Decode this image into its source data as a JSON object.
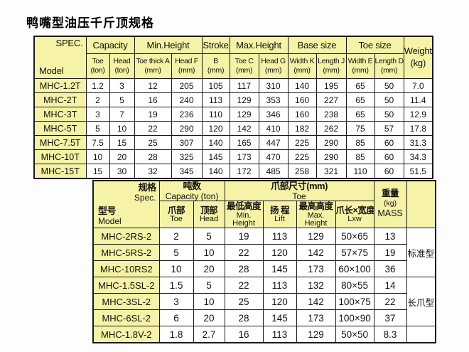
{
  "page": {
    "title": "鸭嘴型油压千斤顶规格"
  },
  "colors": {
    "header_yellow": "#f6f2a6",
    "border": "#1a1a1a",
    "cell_white": "#ffffff"
  },
  "table1": {
    "corner": {
      "top": "SPEC.",
      "bottom": "Model"
    },
    "groups": [
      {
        "label": "Capacity"
      },
      {
        "label": "Min.Height"
      },
      {
        "label": "Stroke"
      },
      {
        "label": "Max.Height"
      },
      {
        "label": "Base size"
      },
      {
        "label": "Toe size"
      }
    ],
    "weight": {
      "label": "Weight",
      "unit": "(kg)"
    },
    "subheaders": [
      {
        "name": "Toe",
        "unit": "(ton)"
      },
      {
        "name": "Head",
        "unit": "(ton)"
      },
      {
        "name": "Toe thick A",
        "unit": "(mm)"
      },
      {
        "name": "Head F",
        "unit": "(mm)"
      },
      {
        "name": "B",
        "unit": "(mm)"
      },
      {
        "name": "Toe C",
        "unit": "(mm)"
      },
      {
        "name": "Head G",
        "unit": "(mm)"
      },
      {
        "name": "Width K",
        "unit": "(mm)"
      },
      {
        "name": "Length J",
        "unit": "(mm)"
      },
      {
        "name": "Width E",
        "unit": "(mm)"
      },
      {
        "name": "Length D",
        "unit": "(mm)"
      }
    ],
    "rows": [
      {
        "model": "MHC-1.2T",
        "values": [
          "1.2",
          "3",
          "12",
          "205",
          "105",
          "117",
          "310",
          "140",
          "195",
          "65",
          "50",
          "7.0"
        ]
      },
      {
        "model": "MHC-2T",
        "values": [
          "2",
          "5",
          "16",
          "240",
          "113",
          "129",
          "353",
          "160",
          "227",
          "65",
          "50",
          "11.4"
        ]
      },
      {
        "model": "MHC-3T",
        "values": [
          "3",
          "7",
          "19",
          "236",
          "110",
          "129",
          "346",
          "160",
          "238",
          "65",
          "50",
          "12.9"
        ]
      },
      {
        "model": "MHC-5T",
        "values": [
          "5",
          "10",
          "22",
          "290",
          "120",
          "142",
          "410",
          "182",
          "262",
          "75",
          "57",
          "17.8"
        ]
      },
      {
        "model": "MHC-7.5T",
        "values": [
          "7.5",
          "15",
          "25",
          "307",
          "140",
          "165",
          "447",
          "225",
          "290",
          "85",
          "60",
          "31.3"
        ]
      },
      {
        "model": "MHC-10T",
        "values": [
          "10",
          "20",
          "28",
          "325",
          "145",
          "173",
          "470",
          "225",
          "290",
          "85",
          "60",
          "34.3"
        ]
      },
      {
        "model": "MHC-15T",
        "values": [
          "15",
          "30",
          "32",
          "345",
          "140",
          "172",
          "485",
          "258",
          "321",
          "110",
          "60",
          "51.5"
        ]
      }
    ]
  },
  "table2": {
    "corner": {
      "top_cn": "规格",
      "top_en": "Spec.",
      "bottom_cn": "型号",
      "bottom_en": "Model"
    },
    "groups": [
      {
        "cn": "吨数",
        "en": "Capacity (ton)"
      },
      {
        "cn": "爪部尺寸(mm)",
        "en": "Toe"
      }
    ],
    "subheaders": [
      {
        "cn": "爪部",
        "en": "Toe"
      },
      {
        "cn": "顶部",
        "en": "Head"
      },
      {
        "cn": "最低高度",
        "en": "Min. Height"
      },
      {
        "cn": "扬 程",
        "en": "Lift"
      },
      {
        "cn": "最高高度",
        "en": "Max. Height"
      },
      {
        "cn": "爪长×宽度",
        "en": "Lxw"
      }
    ],
    "mass": {
      "cn": "重量",
      "unit": "(kg)",
      "en": "MASS"
    },
    "rows": [
      {
        "model": "MHC-2RS-2",
        "values": [
          "2",
          "5",
          "19",
          "113",
          "129",
          "50×65",
          "13"
        ]
      },
      {
        "model": "MHC-5RS-2",
        "values": [
          "5",
          "10",
          "22",
          "120",
          "142",
          "57×75",
          "19"
        ]
      },
      {
        "model": "MHC-10RS2",
        "values": [
          "10",
          "20",
          "28",
          "145",
          "173",
          "60×100",
          "36"
        ]
      },
      {
        "model": "MHC-1.5SL-2",
        "values": [
          "1.5",
          "5",
          "22",
          "113",
          "132",
          "80×55",
          "14"
        ]
      },
      {
        "model": "MHC-3SL-2",
        "values": [
          "3",
          "10",
          "25",
          "120",
          "142",
          "100×75",
          "22"
        ]
      },
      {
        "model": "MHC-6SL-2",
        "values": [
          "6",
          "20",
          "28",
          "145",
          "173",
          "100×90",
          "37"
        ]
      },
      {
        "model": "MHC-1.8V-2",
        "values": [
          "1.8",
          "2.7",
          "16",
          "113",
          "129",
          "50×50",
          "8.3"
        ]
      }
    ],
    "type_labels": [
      {
        "label": "标准型",
        "rows": 3
      },
      {
        "label": "长爪型",
        "rows": 3
      },
      {
        "label": "",
        "rows": 1
      }
    ]
  }
}
